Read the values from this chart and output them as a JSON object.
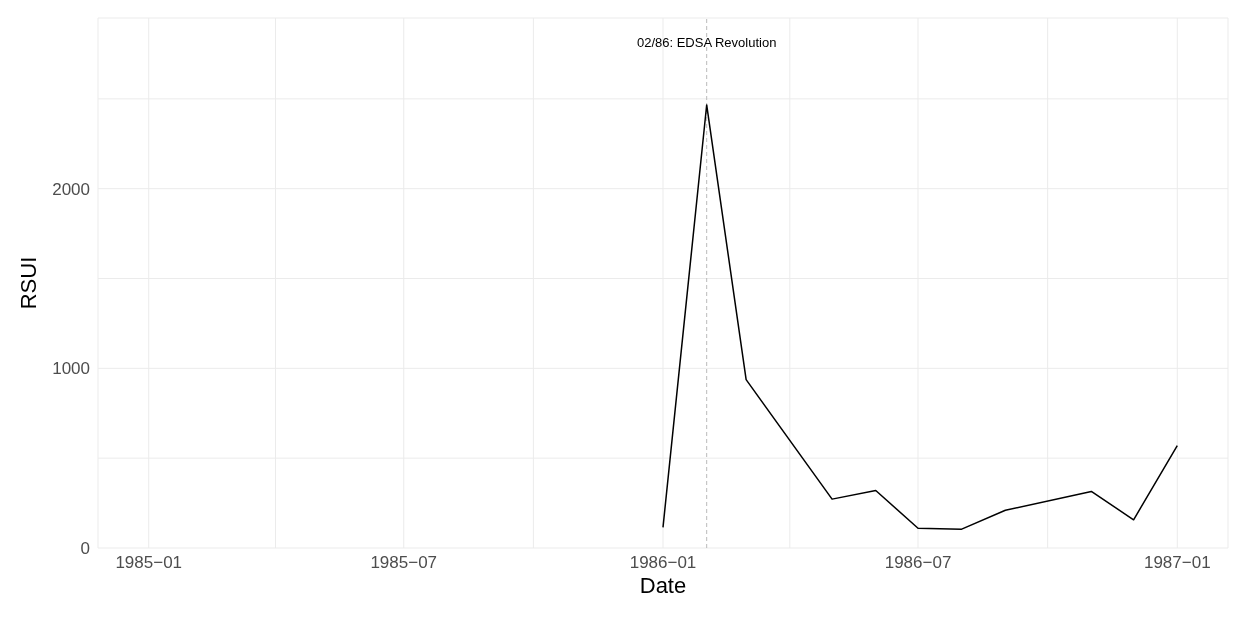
{
  "chart_data": {
    "type": "line",
    "xlabel": "Date",
    "ylabel": "RSUI",
    "x": [
      "1986-01",
      "1986-02",
      "1986-03",
      "1986-05",
      "1986-06",
      "1986-07",
      "1986-08",
      "1986-09",
      "1986-11",
      "1986-12",
      "1987-01"
    ],
    "values": [
      115,
      2466,
      937,
      272,
      320,
      110,
      105,
      210,
      315,
      157,
      570
    ],
    "color": "#000000",
    "line_style": "solid",
    "marker": "none",
    "grid": true,
    "xlim": [
      "1984-11-26",
      "1987-02-06"
    ],
    "xticks": [
      {
        "value": "1985-01",
        "label": "1985−01"
      },
      {
        "value": "1985-04",
        "label": null
      },
      {
        "value": "1985-07",
        "label": "1985−07"
      },
      {
        "value": "1985-10",
        "label": null
      },
      {
        "value": "1986-01",
        "label": "1986−01"
      },
      {
        "value": "1986-04",
        "label": null
      },
      {
        "value": "1986-07",
        "label": "1986−07"
      },
      {
        "value": "1986-10",
        "label": null
      },
      {
        "value": "1987-01",
        "label": "1987−01"
      }
    ],
    "ylim": [
      0,
      2950
    ],
    "yticks": [
      0,
      {
        "value": 500,
        "label": null
      },
      1000,
      {
        "value": 1500,
        "label": null
      },
      2000,
      {
        "value": 2500,
        "label": null
      }
    ],
    "ref_lines": [
      {
        "axis": "x",
        "value": "1986-02",
        "label": "02/86: EDSA Revolution",
        "color": "#bbbbbb",
        "line_style": "dashed"
      }
    ]
  }
}
